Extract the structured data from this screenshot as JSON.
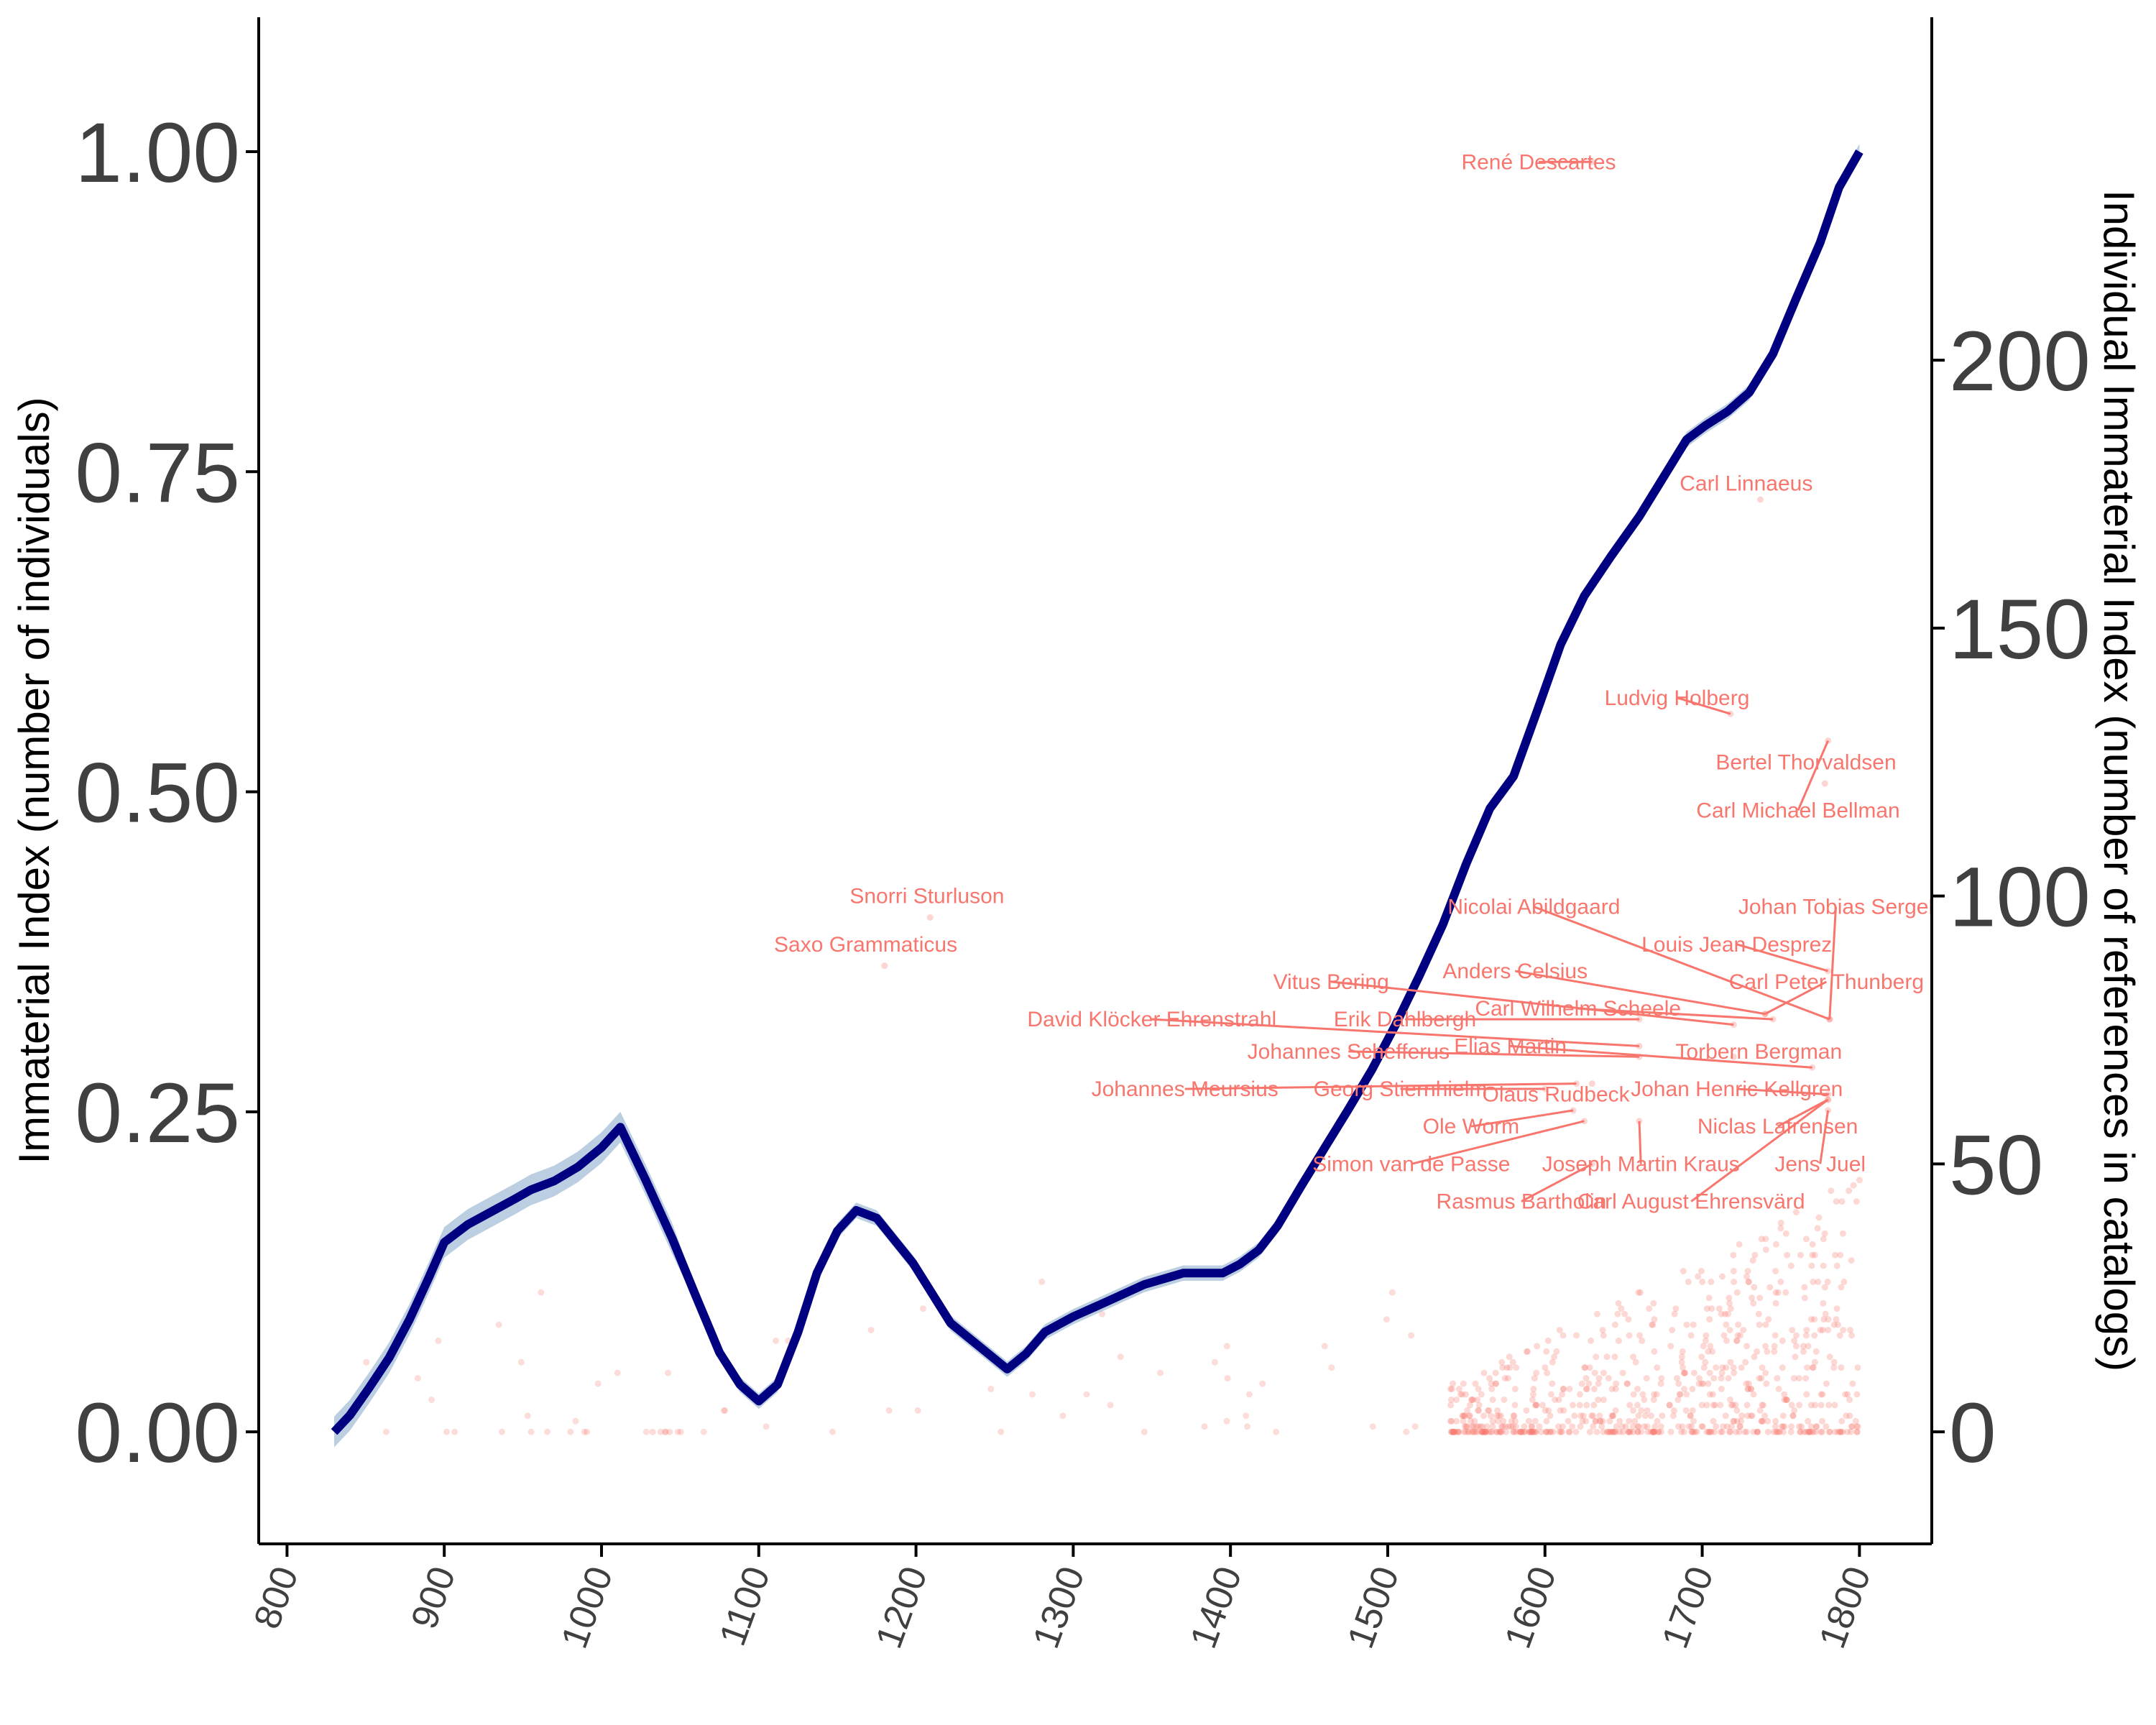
{
  "chart_data": {
    "type": "line",
    "title": "",
    "xlabel": "",
    "ylabel": "Immaterial Index (number of individuals)",
    "y2label": "Individual Immaterial Index (number of references in catalogs)",
    "xlim": [
      782,
      1846
    ],
    "ylim": [
      -0.0875,
      1.105
    ],
    "y2lim": [
      -20.9,
      264.0
    ],
    "x_ticks": [
      "800",
      "900",
      "1000",
      "1100",
      "1200",
      "1300",
      "1400",
      "1500",
      "1600",
      "1700",
      "1800"
    ],
    "y_ticks": [
      "0.00",
      "0.25",
      "0.50",
      "0.75",
      "1.00"
    ],
    "y2_ticks": [
      "0",
      "50",
      "100",
      "150",
      "200"
    ],
    "grid": false,
    "colors": {
      "line": "#000080",
      "ribbon": "#a6bdd7",
      "points": "#f8766d",
      "labels": "#f8766d",
      "axes": "#000000",
      "tick_text": "#404040"
    },
    "series": [
      {
        "kind": "line",
        "x": [
          830,
          840,
          852,
          865,
          878,
          890,
          900,
          915,
          930,
          945,
          955,
          970,
          985,
          1000,
          1012,
          1028,
          1045,
          1060,
          1075,
          1088,
          1100,
          1112,
          1125,
          1137,
          1150,
          1162,
          1175,
          1198,
          1222,
          1243,
          1258,
          1270,
          1282,
          1300,
          1320,
          1345,
          1370,
          1395,
          1406,
          1418,
          1430,
          1445,
          1460,
          1475,
          1490,
          1505,
          1520,
          1535,
          1550,
          1565,
          1580,
          1595,
          1610,
          1625,
          1642,
          1660,
          1675,
          1690,
          1702,
          1716,
          1730,
          1745,
          1760,
          1775,
          1787,
          1800
        ],
        "y": [
          0.0,
          0.013,
          0.034,
          0.058,
          0.088,
          0.12,
          0.148,
          0.162,
          0.172,
          0.182,
          0.189,
          0.196,
          0.207,
          0.222,
          0.238,
          0.197,
          0.151,
          0.106,
          0.062,
          0.037,
          0.024,
          0.037,
          0.078,
          0.124,
          0.157,
          0.173,
          0.167,
          0.132,
          0.085,
          0.064,
          0.049,
          0.061,
          0.078,
          0.09,
          0.101,
          0.115,
          0.124,
          0.124,
          0.131,
          0.142,
          0.161,
          0.192,
          0.222,
          0.252,
          0.283,
          0.318,
          0.356,
          0.396,
          0.444,
          0.487,
          0.512,
          0.563,
          0.615,
          0.653,
          0.684,
          0.715,
          0.745,
          0.775,
          0.786,
          0.797,
          0.812,
          0.842,
          0.886,
          0.929,
          0.972,
          1.0
        ]
      }
    ],
    "labeled_points": [
      {
        "name": "René Descartes",
        "x": 1596,
        "y2": 237,
        "point": [
          1630,
          237
        ]
      },
      {
        "name": "Carl Linnaeus",
        "x": 1728,
        "y2": 177,
        "point": [
          1737,
          174
        ]
      },
      {
        "name": "Ludvig Holberg",
        "x": 1684,
        "y2": 137,
        "point": [
          1718,
          134
        ]
      },
      {
        "name": "Bertel Thorvaldsen",
        "x": 1766,
        "y2": 125,
        "point": [
          1778,
          121
        ]
      },
      {
        "name": "Carl Michael Bellman",
        "x": 1761,
        "y2": 116,
        "point": [
          1780,
          129
        ]
      },
      {
        "name": "Snorri Sturluson",
        "x": 1207,
        "y2": 100,
        "point": [
          1209,
          96
        ]
      },
      {
        "name": "Saxo Grammaticus",
        "x": 1168,
        "y2": 91,
        "point": [
          1180,
          87
        ]
      },
      {
        "name": "Nicolai Abildgaard",
        "x": 1593,
        "y2": 98,
        "point": [
          1781,
          77
        ]
      },
      {
        "name": "Johan Tobias Sergel",
        "x": 1785,
        "y2": 98,
        "point": [
          1781,
          77
        ]
      },
      {
        "name": "Louis Jean Desprez",
        "x": 1722,
        "y2": 91,
        "point": [
          1780,
          86
        ]
      },
      {
        "name": "Anders Celsius",
        "x": 1581,
        "y2": 86,
        "point": [
          1740,
          78
        ]
      },
      {
        "name": "Vitus Bering",
        "x": 1464,
        "y2": 84,
        "point": [
          1720,
          76
        ]
      },
      {
        "name": "Carl Peter Thunberg",
        "x": 1779,
        "y2": 84,
        "point": [
          1740,
          78
        ]
      },
      {
        "name": "Carl Wilhelm Scheele",
        "x": 1621,
        "y2": 79,
        "point": [
          1745,
          77
        ]
      },
      {
        "name": "David Klöcker Ehrenstrahl",
        "x": 1350,
        "y2": 77,
        "point": [
          1660,
          72
        ]
      },
      {
        "name": "Erik Dahlbergh",
        "x": 1511,
        "y2": 77,
        "point": [
          1660,
          77
        ]
      },
      {
        "name": "Johannes Schefferus",
        "x": 1475,
        "y2": 71,
        "point": [
          1660,
          70
        ]
      },
      {
        "name": "Elias Martin",
        "x": 1578,
        "y2": 72,
        "point": [
          1770,
          68
        ]
      },
      {
        "name": "Torbern Bergman",
        "x": 1736,
        "y2": 71,
        "point": [
          1720,
          70
        ]
      },
      {
        "name": "Johannes Meursius",
        "x": 1371,
        "y2": 64,
        "point": [
          1620,
          65
        ]
      },
      {
        "name": "Georg Stiernhielm",
        "x": 1508,
        "y2": 64,
        "point": [
          1600,
          64
        ]
      },
      {
        "name": "Johan Henric Kellgren",
        "x": 1722,
        "y2": 64,
        "point": [
          1780,
          63
        ]
      },
      {
        "name": "Olaus Rudbeck",
        "x": 1607,
        "y2": 63,
        "point": [
          1630,
          65
        ]
      },
      {
        "name": "Ole Worm",
        "x": 1553,
        "y2": 57,
        "point": [
          1618,
          60
        ]
      },
      {
        "name": "Niclas Lafrensen",
        "x": 1748,
        "y2": 57,
        "point": [
          1780,
          62
        ]
      },
      {
        "name": "Simon van de Passe",
        "x": 1515,
        "y2": 50,
        "point": [
          1625,
          58
        ]
      },
      {
        "name": "Joseph Martin Kraus",
        "x": 1661,
        "y2": 50,
        "point": [
          1660,
          58
        ]
      },
      {
        "name": "Jens Juel",
        "x": 1775,
        "y2": 50,
        "point": [
          1780,
          60
        ]
      },
      {
        "name": "Rasmus Bartholin",
        "x": 1585,
        "y2": 43,
        "point": [
          1630,
          50
        ]
      },
      {
        "name": "Carl August Ehrensvärd",
        "x": 1693,
        "y2": 43,
        "point": [
          1780,
          62
        ]
      }
    ]
  }
}
